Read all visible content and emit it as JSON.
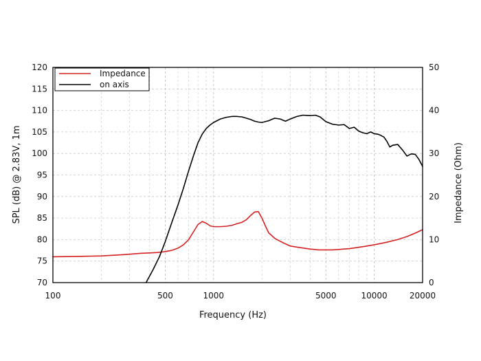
{
  "chart_data": {
    "type": "line",
    "title": "",
    "xlabel": "Frequency (Hz)",
    "ylabel": "SPL (dB) @ 2.83V, 1m",
    "y2label": "Impedance (Ohm)",
    "xscale": "log",
    "xlim": [
      100,
      20000
    ],
    "ylim": [
      70,
      120
    ],
    "y2lim": [
      0,
      50
    ],
    "grid": true,
    "legend_position": "top-left",
    "x_tick_labels": [
      "100",
      "500",
      "1000",
      "5000",
      "10000",
      "20000"
    ],
    "x_tick_values": [
      100,
      500,
      1000,
      5000,
      10000,
      20000
    ],
    "y_ticks": [
      70,
      75,
      80,
      85,
      90,
      95,
      100,
      105,
      110,
      115,
      120
    ],
    "y2_ticks": [
      0,
      10,
      20,
      30,
      40,
      50
    ],
    "series": [
      {
        "name": "Impedance",
        "axis": "right",
        "color": "#d42020",
        "x": [
          100,
          150,
          200,
          250,
          300,
          350,
          400,
          450,
          500,
          550,
          600,
          650,
          700,
          750,
          800,
          850,
          900,
          950,
          1000,
          1100,
          1200,
          1300,
          1400,
          1500,
          1600,
          1700,
          1800,
          1900,
          2000,
          2100,
          2200,
          2400,
          2600,
          2800,
          3000,
          3500,
          4000,
          4500,
          5000,
          5500,
          6000,
          7000,
          8000,
          9000,
          10000,
          11000,
          12000,
          14000,
          16000,
          18000,
          20000
        ],
        "values": [
          6.0,
          6.1,
          6.2,
          6.4,
          6.6,
          6.8,
          6.9,
          7.0,
          7.2,
          7.5,
          8.0,
          8.8,
          10.0,
          11.8,
          13.5,
          14.2,
          13.8,
          13.2,
          13.0,
          13.0,
          13.1,
          13.3,
          13.7,
          14.0,
          14.6,
          15.6,
          16.4,
          16.5,
          15.0,
          13.2,
          11.6,
          10.3,
          9.6,
          9.0,
          8.5,
          8.1,
          7.8,
          7.6,
          7.6,
          7.6,
          7.7,
          7.9,
          8.2,
          8.5,
          8.8,
          9.1,
          9.4,
          10.0,
          10.7,
          11.5,
          12.3
        ]
      },
      {
        "name": "on axis",
        "axis": "left",
        "color": "#000000",
        "x": [
          380,
          420,
          460,
          500,
          550,
          600,
          650,
          700,
          750,
          800,
          850,
          900,
          950,
          1000,
          1100,
          1200,
          1300,
          1400,
          1500,
          1600,
          1700,
          1800,
          1900,
          2000,
          2200,
          2400,
          2600,
          2800,
          3000,
          3300,
          3600,
          4000,
          4300,
          4600,
          5000,
          5500,
          6000,
          6500,
          7000,
          7500,
          8000,
          8500,
          9000,
          9500,
          10000,
          10500,
          11000,
          11500,
          12000,
          12500,
          13000,
          14000,
          15000,
          16000,
          17000,
          18000,
          19000,
          20000
        ],
        "values": [
          70.0,
          73.0,
          76.0,
          79.5,
          84.0,
          88.0,
          92.0,
          96.0,
          99.5,
          102.5,
          104.5,
          105.8,
          106.6,
          107.2,
          108.0,
          108.4,
          108.6,
          108.6,
          108.5,
          108.2,
          107.9,
          107.5,
          107.3,
          107.2,
          107.6,
          108.2,
          108.0,
          107.5,
          108.0,
          108.6,
          108.9,
          108.8,
          108.9,
          108.5,
          107.4,
          106.8,
          106.6,
          106.7,
          105.8,
          106.1,
          105.2,
          104.8,
          104.6,
          105.0,
          104.6,
          104.5,
          104.2,
          103.8,
          102.8,
          101.5,
          101.9,
          102.1,
          100.8,
          99.4,
          99.9,
          99.8,
          98.6,
          97.0
        ]
      }
    ]
  }
}
